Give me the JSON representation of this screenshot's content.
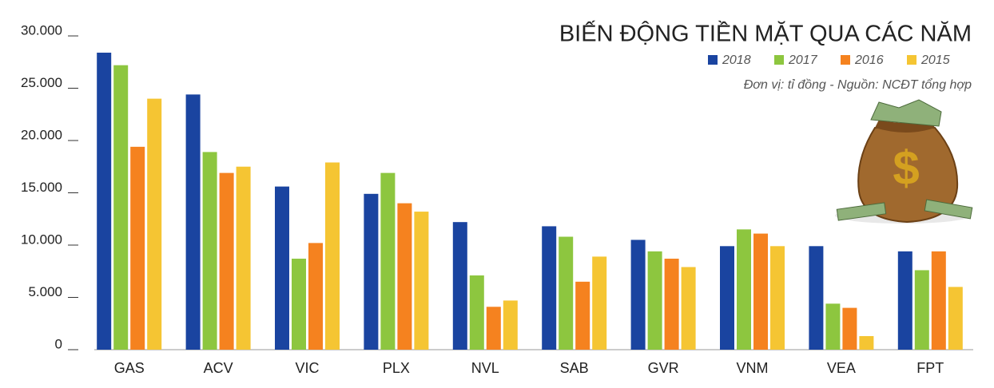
{
  "chart_data": {
    "type": "bar",
    "title": "BIẾN ĐỘNG TIỀN MẶT QUA CÁC NĂM",
    "subtitle": "Đơn vị: tỉ đồng - Nguồn: NCĐT tổng hợp",
    "categories": [
      "GAS",
      "ACV",
      "VIC",
      "PLX",
      "NVL",
      "SAB",
      "GVR",
      "VNM",
      "VEA",
      "FPT"
    ],
    "series": [
      {
        "name": "2018",
        "color": "#1a44a0",
        "values": [
          28400,
          24400,
          15600,
          14900,
          12200,
          11800,
          10500,
          9900,
          9900,
          9400
        ]
      },
      {
        "name": "2017",
        "color": "#8dc63f",
        "values": [
          27200,
          18900,
          8700,
          16900,
          7100,
          10800,
          9400,
          11500,
          4400,
          7600
        ]
      },
      {
        "name": "2016",
        "color": "#f5821f",
        "values": [
          19400,
          16900,
          10200,
          14000,
          4100,
          6500,
          8700,
          11100,
          4000,
          9400
        ]
      },
      {
        "name": "2015",
        "color": "#f5c533",
        "values": [
          24000,
          17500,
          17900,
          13200,
          4700,
          8900,
          7900,
          9900,
          1300,
          6000
        ]
      }
    ],
    "ylim": [
      0,
      30000
    ],
    "yticks": [
      0,
      {
        "value": 5000,
        "label": "5.000"
      },
      {
        "value": 10000,
        "label": "10.000"
      },
      {
        "value": 15000,
        "label": "15.000"
      },
      {
        "value": 20000,
        "label": "20.000"
      },
      {
        "value": 25000,
        "label": "25.000"
      },
      {
        "value": 30000,
        "label": "30.000"
      }
    ],
    "legend": "top-right"
  }
}
